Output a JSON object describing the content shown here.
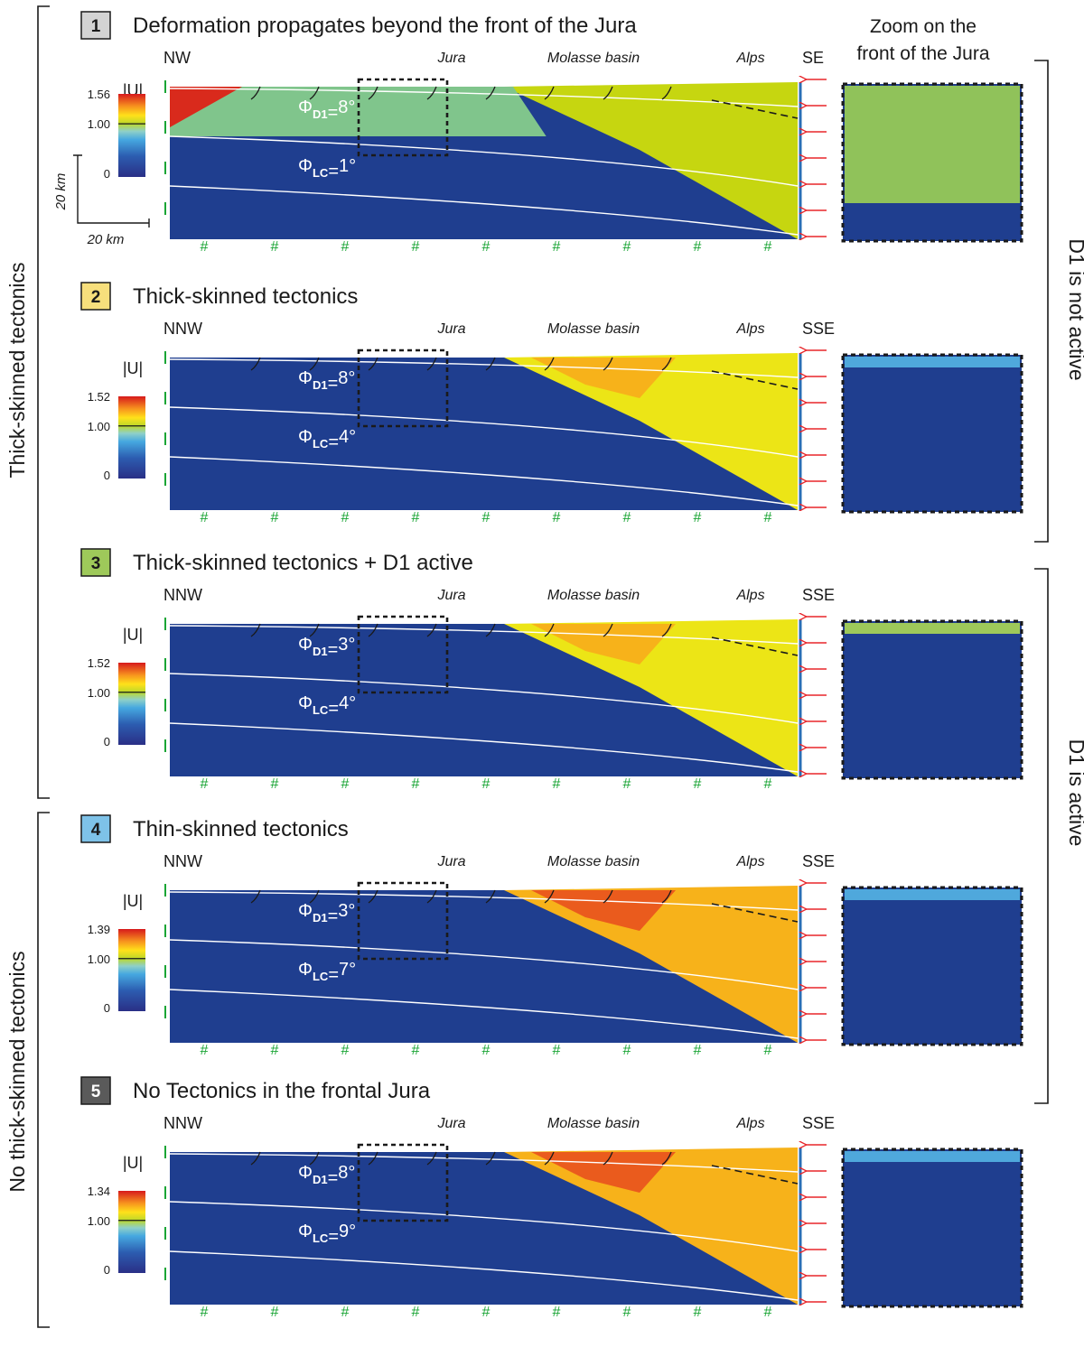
{
  "header": {
    "zoom_line1": "Zoom on the",
    "zoom_line2": "front of the Jura"
  },
  "side_labels": {
    "left_top": "Thick-skinned tectonics",
    "left_bottom": "No thick-skinned tectonics",
    "right_top": "D1 is not active",
    "right_bottom": "D1 is active"
  },
  "scale_bar": {
    "vertical": "20 km",
    "horizontal": "20 km"
  },
  "colorbar_title": "|U|",
  "region_labels": {
    "jura": "Jura",
    "molasse": "Molasse basin",
    "alps": "Alps"
  },
  "colors": {
    "deep_blue": "#1f3e8f",
    "light_green": "#80c58c",
    "olive": "#c6d610",
    "yellow": "#ece516",
    "orange": "#f7b21a",
    "red_orange": "#ea5b1d",
    "red": "#d92a1c",
    "arrow_red": "#e8262a",
    "marker_green": "#1aa535"
  },
  "panels": [
    {
      "number": "1",
      "badge_color": "#d3d3d3",
      "badge_text_color": "#1a1a1a",
      "title": "Deformation propagates beyond the front of the Jura",
      "dir_left": "NW",
      "dir_right": "SE",
      "cb_max": "1.56",
      "cb_mid": "1.00",
      "cb_min": "0",
      "phi_d1": "8°",
      "phi_lc": "1°"
    },
    {
      "number": "2",
      "badge_color": "#f7df7c",
      "badge_text_color": "#1a1a1a",
      "title": "Thick-skinned tectonics",
      "dir_left": "NNW",
      "dir_right": "SSE",
      "cb_max": "1.52",
      "cb_mid": "1.00",
      "cb_min": "0",
      "phi_d1": "8°",
      "phi_lc": "4°"
    },
    {
      "number": "3",
      "badge_color": "#9ec95a",
      "badge_text_color": "#1a1a1a",
      "title": "Thick-skinned tectonics + D1 active",
      "dir_left": "NNW",
      "dir_right": "SSE",
      "cb_max": "1.52",
      "cb_mid": "1.00",
      "cb_min": "0",
      "phi_d1": "3°",
      "phi_lc": "4°"
    },
    {
      "number": "4",
      "badge_color": "#7ec2e8",
      "badge_text_color": "#1a1a1a",
      "title": "Thin-skinned tectonics",
      "dir_left": "NNW",
      "dir_right": "SSE",
      "cb_max": "1.39",
      "cb_mid": "1.00",
      "cb_min": "0",
      "phi_d1": "3°",
      "phi_lc": "7°"
    },
    {
      "number": "5",
      "badge_color": "#5a5a5a",
      "badge_text_color": "#ffffff",
      "title": "No Tectonics in the frontal Jura",
      "dir_left": "NNW",
      "dir_right": "SSE",
      "cb_max": "1.34",
      "cb_mid": "1.00",
      "cb_min": "0",
      "phi_d1": "8°",
      "phi_lc": "9°"
    }
  ]
}
